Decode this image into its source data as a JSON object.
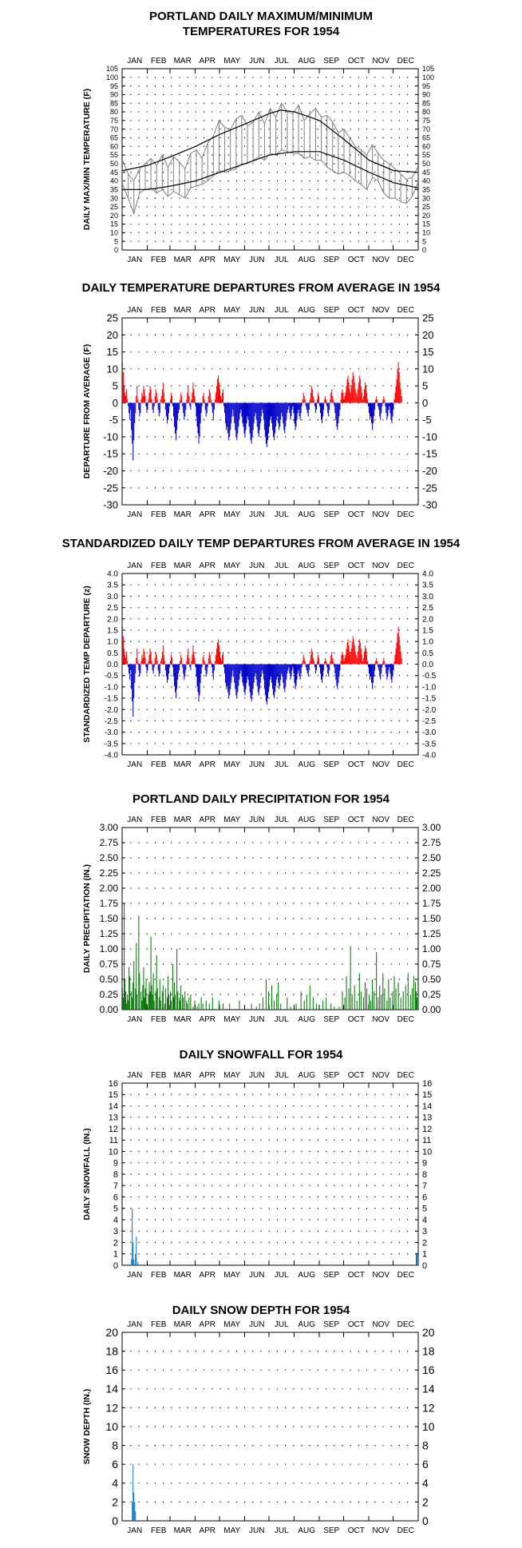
{
  "months": [
    "JAN",
    "FEB",
    "MAR",
    "APR",
    "MAY",
    "JUN",
    "JUL",
    "AUG",
    "SEP",
    "OCT",
    "NOV",
    "DEC"
  ],
  "chart_data": [
    {
      "id": "maxmin",
      "type": "line",
      "title_lines": [
        "PORTLAND DAILY MAXIMUM/MINIMUM",
        "TEMPERATURES FOR 1954"
      ],
      "ylabel": "DAILY MAX/MIN TEMPERATURE (F)",
      "xlabel": "",
      "ylim": [
        0,
        105
      ],
      "ytick_step": 5,
      "grid": true,
      "colors": {
        "daily": "#808080",
        "normal": "#000000"
      },
      "series": [
        {
          "role": "normal_max",
          "days": [
            1,
            32,
            60,
            91,
            121,
            152,
            182,
            196,
            213,
            244,
            274,
            305,
            335,
            365
          ],
          "values": [
            46,
            49,
            54,
            60,
            67,
            73,
            79,
            81,
            80,
            75,
            64,
            52,
            46,
            45
          ]
        },
        {
          "role": "normal_min",
          "days": [
            1,
            32,
            60,
            91,
            121,
            152,
            182,
            213,
            244,
            274,
            305,
            335,
            365
          ],
          "values": [
            35,
            35,
            37,
            40,
            45,
            50,
            55,
            57,
            57,
            52,
            45,
            39,
            36
          ]
        },
        {
          "role": "daily_max",
          "days": [
            1,
            8,
            15,
            22,
            29,
            36,
            43,
            50,
            57,
            64,
            71,
            78,
            85,
            92,
            99,
            106,
            113,
            120,
            127,
            134,
            141,
            148,
            155,
            162,
            169,
            176,
            183,
            190,
            197,
            204,
            211,
            218,
            225,
            232,
            239,
            246,
            253,
            260,
            267,
            274,
            281,
            288,
            295,
            302,
            309,
            316,
            323,
            330,
            337,
            344,
            351,
            358,
            365
          ],
          "values": [
            52,
            44,
            40,
            47,
            50,
            53,
            49,
            55,
            48,
            54,
            51,
            47,
            56,
            58,
            53,
            62,
            66,
            75,
            71,
            70,
            76,
            78,
            72,
            74,
            80,
            73,
            82,
            77,
            85,
            80,
            79,
            84,
            75,
            79,
            82,
            77,
            78,
            74,
            68,
            70,
            65,
            60,
            58,
            55,
            61,
            56,
            52,
            50,
            47,
            44,
            41,
            42,
            48
          ]
        },
        {
          "role": "daily_min",
          "days": [
            1,
            8,
            15,
            22,
            29,
            36,
            43,
            50,
            57,
            64,
            71,
            78,
            85,
            92,
            99,
            106,
            113,
            120,
            127,
            134,
            141,
            148,
            155,
            162,
            169,
            176,
            183,
            190,
            197,
            204,
            211,
            218,
            225,
            232,
            239,
            246,
            253,
            260,
            267,
            274,
            281,
            288,
            295,
            302,
            309,
            316,
            323,
            330,
            337,
            344,
            351,
            358,
            365
          ],
          "values": [
            38,
            30,
            21,
            33,
            35,
            36,
            33,
            35,
            31,
            34,
            32,
            30,
            36,
            37,
            38,
            40,
            43,
            46,
            45,
            46,
            47,
            50,
            50,
            52,
            54,
            52,
            56,
            55,
            58,
            57,
            56,
            56,
            53,
            54,
            52,
            52,
            48,
            46,
            44,
            45,
            43,
            40,
            38,
            35,
            42,
            40,
            33,
            30,
            30,
            28,
            27,
            31,
            39
          ]
        }
      ]
    },
    {
      "id": "departures",
      "type": "bar",
      "title": "DAILY TEMPERATURE DEPARTURES FROM AVERAGE IN 1954",
      "ylabel": "DEPARTURE FROM AVERAGE (F)",
      "xlabel": "",
      "ylim": [
        -30,
        25
      ],
      "ytick_step": 5,
      "grid": true,
      "colors": {
        "positive": "#ff0000",
        "negative": "#0000cc"
      },
      "values": [
        12,
        9,
        5,
        3,
        2,
        4,
        1,
        -1,
        -3,
        -5,
        -2,
        -8,
        -12,
        -17,
        -11,
        -6,
        -3,
        2,
        5,
        1,
        -2,
        -4,
        -3,
        1,
        3,
        2,
        5,
        4,
        2,
        -1,
        -3,
        -2,
        1,
        3,
        5,
        4,
        1,
        -2,
        -3,
        -1,
        2,
        4,
        3,
        1,
        -2,
        -4,
        -3,
        1,
        2,
        4,
        6,
        3,
        1,
        -2,
        -4,
        -6,
        -5,
        -3,
        -1,
        1,
        3,
        2,
        -1,
        -4,
        -7,
        -9,
        -11,
        -8,
        -5,
        -3,
        -2,
        1,
        3,
        2,
        -1,
        -3,
        -5,
        -4,
        -2,
        1,
        3,
        5,
        2,
        -1,
        -2,
        1,
        3,
        6,
        4,
        2,
        -1,
        -4,
        -7,
        -9,
        -12,
        -10,
        -6,
        -3,
        -1,
        2,
        3,
        1,
        -2,
        -4,
        -3,
        -1,
        2,
        4,
        3,
        1,
        -1,
        -3,
        -5,
        -2,
        1,
        3,
        5,
        7,
        8,
        6,
        4,
        2,
        1,
        3,
        4,
        -1,
        -3,
        -6,
        -8,
        -7,
        -9,
        -11,
        -10,
        -8,
        -6,
        -4,
        -2,
        -4,
        -6,
        -8,
        -10,
        -11,
        -9,
        -7,
        -5,
        -3,
        -2,
        -4,
        -6,
        -7,
        -9,
        -10,
        -8,
        -6,
        -4,
        -5,
        -7,
        -9,
        -11,
        -12,
        -10,
        -8,
        -6,
        -4,
        -3,
        -5,
        -7,
        -9,
        -10,
        -8,
        -6,
        -4,
        -2,
        -3,
        -5,
        -8,
        -10,
        -12,
        -13,
        -11,
        -9,
        -7,
        -5,
        -4,
        -6,
        -8,
        -10,
        -11,
        -9,
        -7,
        -5,
        -4,
        -6,
        -8,
        -7,
        -5,
        -3,
        -4,
        -6,
        -8,
        -9,
        -7,
        -5,
        -3,
        -2,
        -1,
        -3,
        -5,
        -4,
        -2,
        -1,
        -3,
        -6,
        -8,
        -7,
        -5,
        -3,
        -2,
        -4,
        -5,
        -3,
        -1,
        1,
        3,
        2,
        1,
        -1,
        -2,
        -3,
        -4,
        -2,
        1,
        3,
        5,
        4,
        2,
        1,
        -1,
        -3,
        -2,
        1,
        3,
        2,
        -1,
        -3,
        -5,
        -6,
        -4,
        -2,
        1,
        2,
        1,
        -1,
        -3,
        -4,
        -2,
        1,
        3,
        4,
        2,
        1,
        -1,
        -3,
        -5,
        -7,
        -8,
        -6,
        -4,
        -2,
        1,
        3,
        4,
        3,
        1,
        2,
        3,
        5,
        7,
        8,
        6,
        4,
        3,
        5,
        7,
        9,
        8,
        6,
        4,
        3,
        2,
        4,
        6,
        8,
        7,
        5,
        3,
        1,
        2,
        4,
        6,
        5,
        3,
        1,
        -1,
        -3,
        -5,
        -4,
        -6,
        -8,
        -6,
        -4,
        -2,
        1,
        2,
        1,
        -1,
        -2,
        -4,
        -5,
        -3,
        -1,
        1,
        2,
        1,
        -1,
        -3,
        -5,
        -4,
        -2,
        -1,
        -3,
        -5,
        -6,
        -4,
        -2,
        1,
        3,
        5,
        7,
        10,
        12,
        9,
        6,
        4,
        2
      ]
    },
    {
      "id": "standardized",
      "type": "bar",
      "title": "STANDARDIZED DAILY TEMP DEPARTURES FROM AVERAGE IN 1954",
      "ylabel": "STANDARDIZED TEMP DEPARTURE (z)",
      "xlabel": "",
      "ylim": [
        -4.0,
        4.0
      ],
      "ytick_step": 0.5,
      "ytick_decimals": 1,
      "grid": true,
      "colors": {
        "positive": "#ff0000",
        "negative": "#0000cc"
      },
      "derive": {
        "from": "departures",
        "divisor": 7.3
      }
    },
    {
      "id": "precip",
      "type": "bar",
      "title": "PORTLAND DAILY PRECIPITATION FOR 1954",
      "ylabel": "DAILY PRECIPITATION (IN.)",
      "xlabel": "",
      "ylim": [
        0,
        3.0
      ],
      "ytick_step": 0.25,
      "ytick_decimals": 2,
      "grid": true,
      "colors": {
        "bar": "#007700"
      },
      "days": [
        1,
        2,
        3,
        4,
        5,
        6,
        7,
        8,
        9,
        10,
        12,
        13,
        14,
        15,
        17,
        18,
        19,
        21,
        22,
        24,
        25,
        26,
        27,
        28,
        29,
        30,
        31,
        33,
        34,
        35,
        36,
        37,
        38,
        39,
        40,
        42,
        43,
        44,
        46,
        47,
        48,
        50,
        51,
        53,
        54,
        56,
        57,
        58,
        60,
        61,
        63,
        64,
        65,
        66,
        68,
        69,
        71,
        72,
        73,
        75,
        76,
        78,
        80,
        81,
        83,
        85,
        88,
        90,
        93,
        95,
        98,
        100,
        104,
        108,
        112,
        120,
        125,
        133,
        145,
        160,
        166,
        170,
        174,
        178,
        181,
        185,
        188,
        191,
        193,
        196,
        204,
        208,
        215,
        221,
        225,
        228,
        232,
        236,
        240,
        248,
        252,
        258,
        262,
        268,
        272,
        275,
        277,
        280,
        282,
        284,
        287,
        290,
        293,
        295,
        298,
        300,
        302,
        305,
        307,
        309,
        311,
        314,
        316,
        318,
        320,
        322,
        324,
        327,
        329,
        331,
        334,
        336,
        338,
        341,
        344,
        347,
        350,
        353,
        356,
        358,
        360,
        362,
        363,
        364
      ],
      "values": [
        0.35,
        0.2,
        1.75,
        0.5,
        0.3,
        0.1,
        0.25,
        0.15,
        0.7,
        0.55,
        0.3,
        0.2,
        0.45,
        0.8,
        0.35,
        1.1,
        0.25,
        1.55,
        0.6,
        0.3,
        0.15,
        0.4,
        0.7,
        0.2,
        0.35,
        0.5,
        0.1,
        0.25,
        0.45,
        0.3,
        1.2,
        0.4,
        0.25,
        0.6,
        0.15,
        0.3,
        0.9,
        0.35,
        0.2,
        0.5,
        0.15,
        0.3,
        0.4,
        0.1,
        0.35,
        0.2,
        0.55,
        0.25,
        0.3,
        0.15,
        0.75,
        0.2,
        0.45,
        0.25,
        1.0,
        0.3,
        0.2,
        0.15,
        0.4,
        0.25,
        0.2,
        0.3,
        0.15,
        0.1,
        0.2,
        0.25,
        0.05,
        0.15,
        0.05,
        0.1,
        0.2,
        0.1,
        0.15,
        0.1,
        0.2,
        0.15,
        0.1,
        0.1,
        0.15,
        0.1,
        0.05,
        0.1,
        0.2,
        0.5,
        0.3,
        0.4,
        0.15,
        0.25,
        0.45,
        0.1,
        0.2,
        0.05,
        0.1,
        0.3,
        0.15,
        0.25,
        0.4,
        0.2,
        0.1,
        0.15,
        0.2,
        0.1,
        0.05,
        0.05,
        0.3,
        0.2,
        0.55,
        0.35,
        1.05,
        0.25,
        0.4,
        0.15,
        0.6,
        0.3,
        0.2,
        0.45,
        0.35,
        0.25,
        0.15,
        0.5,
        0.3,
        0.95,
        0.2,
        0.4,
        0.25,
        0.6,
        0.35,
        0.15,
        0.5,
        0.2,
        0.3,
        0.55,
        0.35,
        0.45,
        0.2,
        0.3,
        0.4,
        0.6,
        0.25,
        0.35,
        0.55,
        0.45,
        0.3,
        0.2
      ]
    },
    {
      "id": "snowfall",
      "type": "bar",
      "title": "DAILY SNOWFALL FOR 1954",
      "ylabel": "DAILY SNOWFALL (IN.)",
      "xlabel": "",
      "ylim": [
        0,
        16
      ],
      "ytick_step": 1,
      "grid": true,
      "colors": {
        "bar": "#0077cc"
      },
      "days": [
        12,
        13,
        14,
        15,
        17,
        18,
        20,
        363,
        364
      ],
      "values": [
        0.5,
        5.0,
        2.0,
        0.5,
        1.0,
        2.5,
        0.3,
        1.0,
        1.1
      ]
    },
    {
      "id": "snowdepth",
      "type": "bar",
      "title": "DAILY SNOW DEPTH FOR 1954",
      "ylabel": "SNOW DEPTH (IN.)",
      "xlabel": "",
      "ylim": [
        0,
        20
      ],
      "ytick_step": 2,
      "grid": true,
      "colors": {
        "bar": "#0077cc"
      },
      "days": [
        13,
        14,
        15,
        16,
        17
      ],
      "values": [
        2,
        6,
        3,
        2,
        1
      ]
    }
  ]
}
